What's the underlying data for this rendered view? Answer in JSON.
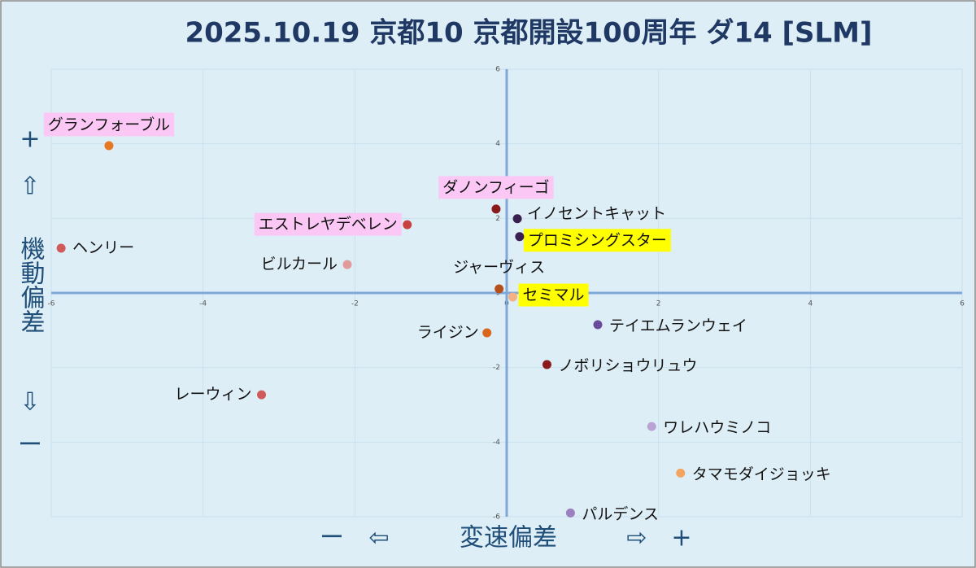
{
  "chart_data": {
    "type": "scatter",
    "title": "2025.10.19 京都10 京都開設100周年 ダ14 [SLM]",
    "xlim": [
      -6,
      6
    ],
    "ylim": [
      -6,
      6
    ],
    "xticks": [
      -6,
      -4,
      -2,
      0,
      2,
      4,
      6
    ],
    "yticks": [
      -6,
      -4,
      -2,
      0,
      2,
      4,
      6
    ],
    "grid": true,
    "y_axis_texts": {
      "plus": "+",
      "up": "⇧",
      "label": "機動偏差",
      "down": "⇩",
      "minus": "ー"
    },
    "x_axis_texts": {
      "minus": "ー",
      "left": "⇦",
      "label": "変速偏差",
      "right": "⇨",
      "plus": "+"
    },
    "points": [
      {
        "name": "グランフォーブル",
        "x": -5.24,
        "y": 3.95,
        "color": "#e87722",
        "highlight": "#fbc8f5"
      },
      {
        "name": "ヘンリー",
        "x": -5.87,
        "y": 1.2,
        "color": "#d05a5a",
        "highlight": null
      },
      {
        "name": "エストレヤデベレン",
        "x": -1.31,
        "y": 1.83,
        "color": "#c84040",
        "highlight": "#fbc8f5"
      },
      {
        "name": "ビルカール",
        "x": -2.1,
        "y": 0.76,
        "color": "#e39a9a",
        "highlight": null
      },
      {
        "name": "ダノンフィーゴ",
        "x": -0.14,
        "y": 2.25,
        "color": "#8b1a1a",
        "highlight": "#fbc8f5"
      },
      {
        "name": "イノセントキャット",
        "x": 0.14,
        "y": 1.99,
        "color": "#3a2050",
        "highlight": null
      },
      {
        "name": "プロミシングスター",
        "x": 0.17,
        "y": 1.51,
        "color": "#3a2050",
        "highlight": "#ffff00"
      },
      {
        "name": "ジャーヴィス",
        "x": -0.1,
        "y": 0.11,
        "color": "#b5501a",
        "highlight": null
      },
      {
        "name": "セミマル",
        "x": 0.08,
        "y": -0.11,
        "color": "#f4b183",
        "highlight": "#ffff00"
      },
      {
        "name": "ライジン",
        "x": -0.26,
        "y": -1.07,
        "color": "#d9661c",
        "highlight": null
      },
      {
        "name": "テイエムランウェイ",
        "x": 1.2,
        "y": -0.85,
        "color": "#6a4a9a",
        "highlight": null
      },
      {
        "name": "ノボリショウリュウ",
        "x": 0.53,
        "y": -1.92,
        "color": "#8b1a1a",
        "highlight": null
      },
      {
        "name": "レーウィン",
        "x": -3.23,
        "y": -2.73,
        "color": "#d05a5a",
        "highlight": null
      },
      {
        "name": "ワレハウミノコ",
        "x": 1.91,
        "y": -3.58,
        "color": "#b9a3d6",
        "highlight": null
      },
      {
        "name": "タマモダイジョッキ",
        "x": 2.29,
        "y": -4.83,
        "color": "#f4a460",
        "highlight": null
      },
      {
        "name": "パルデンス",
        "x": 0.84,
        "y": -5.9,
        "color": "#9a80c0",
        "highlight": null
      }
    ]
  }
}
